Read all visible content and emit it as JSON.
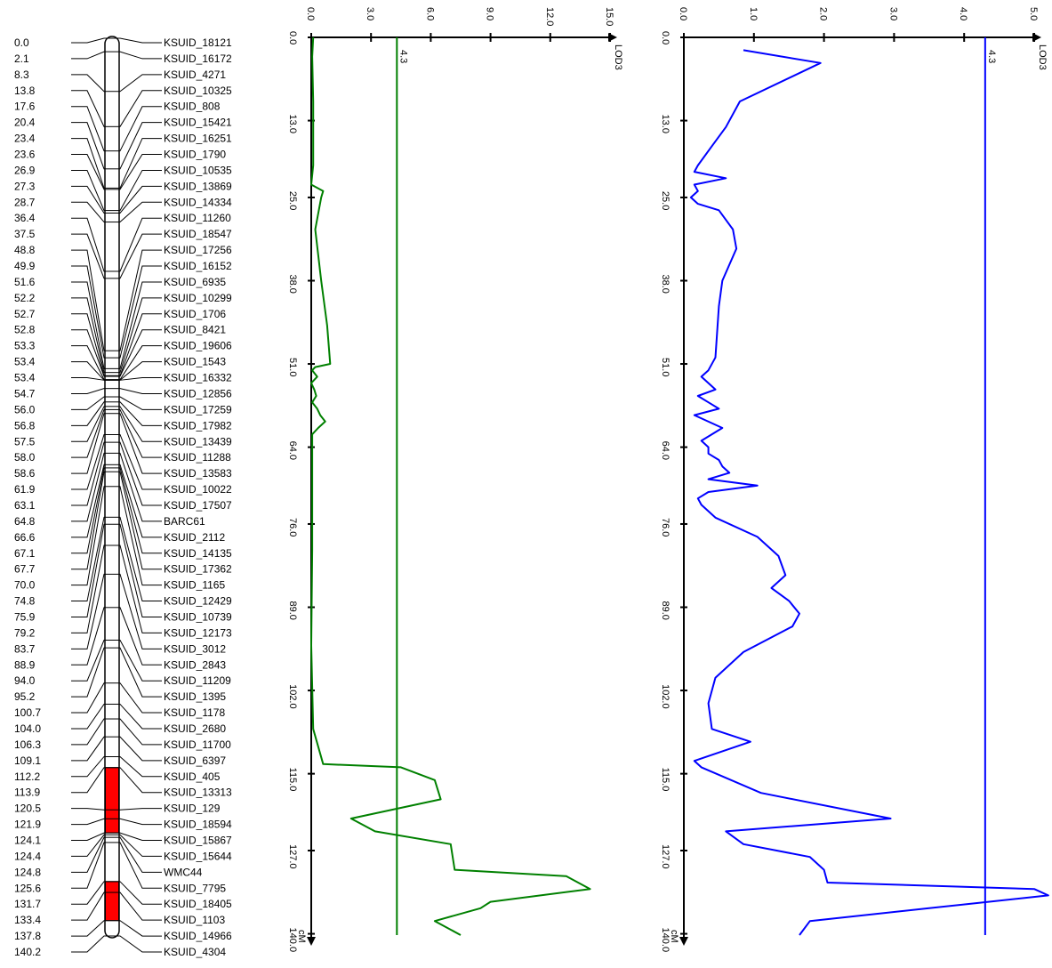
{
  "linkage_map": {
    "positions": [
      "0.0",
      "2.1",
      "8.3",
      "13.8",
      "17.6",
      "20.4",
      "23.4",
      "23.6",
      "26.9",
      "27.3",
      "28.7",
      "36.4",
      "37.5",
      "48.8",
      "49.9",
      "51.6",
      "52.2",
      "52.7",
      "52.8",
      "53.3",
      "53.4",
      "53.4",
      "54.7",
      "56.0",
      "56.8",
      "57.5",
      "58.0",
      "58.6",
      "61.9",
      "63.1",
      "64.8",
      "66.6",
      "67.1",
      "67.7",
      "70.0",
      "74.8",
      "75.9",
      "79.2",
      "83.7",
      "88.9",
      "94.0",
      "95.2",
      "100.7",
      "104.0",
      "106.3",
      "109.1",
      "112.2",
      "113.9",
      "120.5",
      "121.9",
      "124.1",
      "124.4",
      "124.8",
      "125.6",
      "131.7",
      "133.4",
      "137.8",
      "140.2"
    ],
    "markers": [
      "KSUID_18121",
      "KSUID_16172",
      "KSUID_4271",
      "KSUID_10325",
      "KSUID_808",
      "KSUID_15421",
      "KSUID_16251",
      "KSUID_1790",
      "KSUID_10535",
      "KSUID_13869",
      "KSUID_14334",
      "KSUID_11260",
      "KSUID_18547",
      "KSUID_17256",
      "KSUID_16152",
      "KSUID_6935",
      "KSUID_10299",
      "KSUID_1706",
      "KSUID_8421",
      "KSUID_19606",
      "KSUID_1543",
      "KSUID_16332",
      "KSUID_12856",
      "KSUID_17259",
      "KSUID_17982",
      "KSUID_13439",
      "KSUID_11288",
      "KSUID_13583",
      "KSUID_10022",
      "KSUID_17507",
      "BARC61",
      "KSUID_2112",
      "KSUID_14135",
      "KSUID_17362",
      "KSUID_1165",
      "KSUID_12429",
      "KSUID_10739",
      "KSUID_12173",
      "KSUID_3012",
      "KSUID_2843",
      "KSUID_11209",
      "KSUID_1395",
      "KSUID_1178",
      "KSUID_2680",
      "KSUID_11700",
      "KSUID_6397",
      "KSUID_405",
      "KSUID_13313",
      "KSUID_129",
      "KSUID_18594",
      "KSUID_15867",
      "KSUID_15644",
      "WMC44",
      "KSUID_7795",
      "KSUID_18405",
      "KSUID_1103",
      "KSUID_14966",
      "KSUID_4304"
    ],
    "qtl_intervals_cm": [
      [
        113.9,
        124.1
      ],
      [
        131.7,
        137.8
      ]
    ],
    "qtl_color": "#ff0000"
  },
  "chart_data": [
    {
      "type": "line",
      "name": "green-lod-profile",
      "color": "#008000",
      "y_axis": {
        "ticks": [
          "0.0",
          "13.0",
          "25.0",
          "38.0",
          "51.0",
          "64.0",
          "76.0",
          "89.0",
          "102.0",
          "115.0",
          "127.0",
          "140.0"
        ],
        "label": "cM",
        "range": [
          0,
          140.2
        ]
      },
      "x_axis": {
        "ticks": [
          "0.0",
          "3.0",
          "6.0",
          "9.0",
          "12.0",
          "15.0"
        ],
        "label": "LOD3",
        "range": [
          0,
          15
        ]
      },
      "threshold": {
        "value": 4.3,
        "label": "4.3"
      },
      "points": [
        [
          0,
          0.1
        ],
        [
          3,
          0.05
        ],
        [
          10,
          0.1
        ],
        [
          20,
          0.1
        ],
        [
          23,
          0.0
        ],
        [
          24,
          0.6
        ],
        [
          25,
          0.5
        ],
        [
          30,
          0.2
        ],
        [
          38,
          0.5
        ],
        [
          45,
          0.8
        ],
        [
          51,
          0.95
        ],
        [
          51.5,
          0.2
        ],
        [
          52,
          0.05
        ],
        [
          53,
          0.3
        ],
        [
          54,
          0.0
        ],
        [
          55,
          0.15
        ],
        [
          56,
          0.25
        ],
        [
          57,
          0.05
        ],
        [
          58,
          0.3
        ],
        [
          59,
          0.45
        ],
        [
          60,
          0.7
        ],
        [
          61,
          0.35
        ],
        [
          62,
          0.05
        ],
        [
          66,
          0.05
        ],
        [
          80,
          0.05
        ],
        [
          95,
          0.0
        ],
        [
          108,
          0.1
        ],
        [
          113.5,
          0.6
        ],
        [
          114,
          4.5
        ],
        [
          116,
          6.2
        ],
        [
          119,
          6.5
        ],
        [
          122,
          2.0
        ],
        [
          124,
          3.2
        ],
        [
          126,
          7.0
        ],
        [
          130,
          7.2
        ],
        [
          131,
          12.8
        ],
        [
          133,
          14.0
        ],
        [
          135,
          9.0
        ],
        [
          136,
          8.5
        ],
        [
          138,
          6.2
        ],
        [
          140.2,
          7.5
        ]
      ]
    },
    {
      "type": "line",
      "name": "blue-lod-profile",
      "color": "#0000ff",
      "y_axis": {
        "ticks": [
          "0.0",
          "13.0",
          "25.0",
          "38.0",
          "51.0",
          "64.0",
          "76.0",
          "89.0",
          "102.0",
          "115.0",
          "127.0",
          "140.0"
        ],
        "label": "cM",
        "range": [
          0,
          140.2
        ]
      },
      "x_axis": {
        "ticks": [
          "0.0",
          "1.0",
          "2.0",
          "3.0",
          "4.0",
          "5.0"
        ],
        "label": "LOD3",
        "range": [
          0,
          5
        ]
      },
      "threshold": {
        "value": 4.3,
        "label": "4.3"
      },
      "points": [
        [
          2,
          0.85
        ],
        [
          4,
          1.95
        ],
        [
          10,
          0.8
        ],
        [
          14,
          0.6
        ],
        [
          17,
          0.4
        ],
        [
          20,
          0.2
        ],
        [
          21,
          0.15
        ],
        [
          22,
          0.6
        ],
        [
          23,
          0.15
        ],
        [
          24,
          0.2
        ],
        [
          25,
          0.1
        ],
        [
          26,
          0.2
        ],
        [
          27,
          0.5
        ],
        [
          30,
          0.7
        ],
        [
          33,
          0.75
        ],
        [
          38,
          0.55
        ],
        [
          42,
          0.5
        ],
        [
          50,
          0.45
        ],
        [
          52,
          0.35
        ],
        [
          53,
          0.25
        ],
        [
          55,
          0.45
        ],
        [
          56,
          0.2
        ],
        [
          57,
          0.35
        ],
        [
          58,
          0.5
        ],
        [
          59,
          0.15
        ],
        [
          61,
          0.55
        ],
        [
          63,
          0.25
        ],
        [
          64,
          0.35
        ],
        [
          65,
          0.35
        ],
        [
          66,
          0.5
        ],
        [
          67,
          0.55
        ],
        [
          68,
          0.65
        ],
        [
          69,
          0.35
        ],
        [
          70,
          1.05
        ],
        [
          71,
          0.35
        ],
        [
          72,
          0.2
        ],
        [
          73,
          0.25
        ],
        [
          75,
          0.45
        ],
        [
          78,
          1.05
        ],
        [
          81,
          1.35
        ],
        [
          84,
          1.45
        ],
        [
          86,
          1.25
        ],
        [
          88,
          1.5
        ],
        [
          90,
          1.65
        ],
        [
          92,
          1.55
        ],
        [
          96,
          0.85
        ],
        [
          100,
          0.45
        ],
        [
          104,
          0.35
        ],
        [
          108,
          0.4
        ],
        [
          110,
          0.95
        ],
        [
          113,
          0.15
        ],
        [
          114,
          0.25
        ],
        [
          118,
          1.1
        ],
        [
          122,
          2.95
        ],
        [
          124,
          0.6
        ],
        [
          126,
          0.85
        ],
        [
          128,
          1.8
        ],
        [
          130,
          2.0
        ],
        [
          132,
          2.05
        ],
        [
          133,
          5.0
        ],
        [
          134,
          5.2
        ],
        [
          136,
          3.5
        ],
        [
          138,
          1.8
        ],
        [
          140.2,
          1.65
        ]
      ]
    }
  ]
}
